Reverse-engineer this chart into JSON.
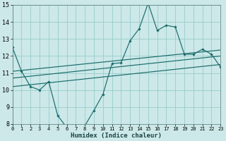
{
  "xlabel": "Humidex (Indice chaleur)",
  "bg_color": "#cce8e8",
  "grid_color": "#99cccc",
  "line_color": "#1a6b6b",
  "x_min": 0,
  "x_max": 23,
  "y_min": 8,
  "y_max": 15,
  "x_ticks": [
    0,
    1,
    2,
    3,
    4,
    5,
    6,
    7,
    8,
    9,
    10,
    11,
    12,
    13,
    14,
    15,
    16,
    17,
    18,
    19,
    20,
    21,
    22,
    23
  ],
  "y_ticks": [
    8,
    9,
    10,
    11,
    12,
    13,
    14,
    15
  ],
  "line1_x": [
    0,
    1,
    2,
    3,
    4,
    5,
    6,
    7,
    8,
    9,
    10,
    11,
    12,
    13,
    14,
    15,
    16,
    17,
    18,
    19,
    20,
    21,
    22,
    23
  ],
  "line1_y": [
    12.5,
    11.1,
    10.2,
    10.0,
    10.5,
    8.5,
    7.8,
    7.9,
    7.9,
    8.8,
    9.75,
    11.55,
    11.6,
    12.9,
    13.6,
    15.1,
    13.5,
    13.8,
    13.7,
    12.1,
    12.1,
    12.4,
    12.1,
    11.35
  ],
  "line2_x": [
    0,
    23
  ],
  "line2_y": [
    10.2,
    11.5
  ],
  "line3_x": [
    0,
    23
  ],
  "line3_y": [
    10.7,
    12.0
  ],
  "line4_x": [
    0,
    23
  ],
  "line4_y": [
    11.1,
    12.35
  ]
}
